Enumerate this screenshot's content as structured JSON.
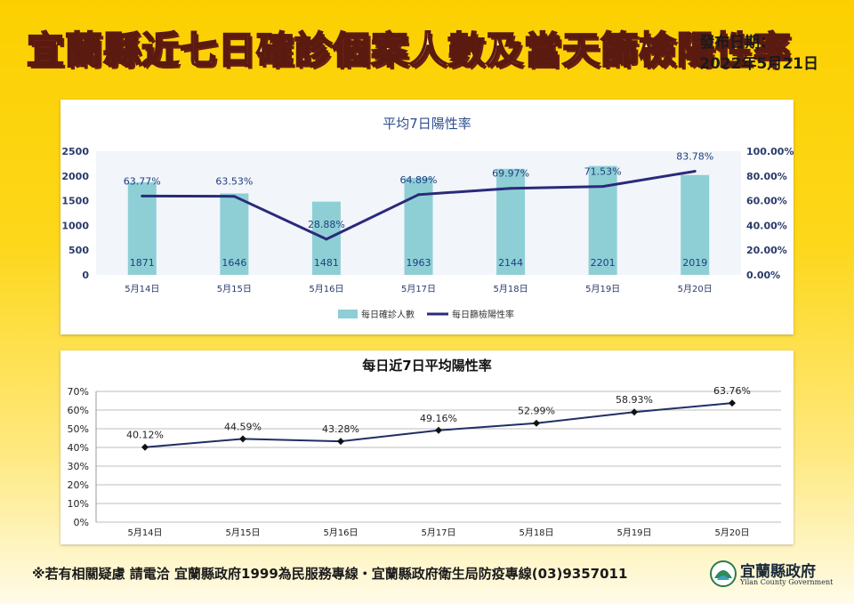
{
  "header": {
    "title": "宜蘭縣近七日確診個案人數及當天篩檢陽性率",
    "pub_label": "發布日期：",
    "pub_date": "2022年5月21日"
  },
  "footer": {
    "note": "※若有相關疑慮 請電洽  宜蘭縣政府1999為民服務專線・宜蘭縣政府衛生局防疫專線(03)9357011"
  },
  "logo": {
    "name": "宜蘭縣政府",
    "english": "Yilan County Government"
  },
  "colors": {
    "bar": "#8ecfd6",
    "line": "#2a2a7a",
    "label": "#1f3f7f"
  },
  "chart_data": [
    {
      "type": "bar+line",
      "title": "平均7日陽性率",
      "categories": [
        "5月14日",
        "5月15日",
        "5月16日",
        "5月17日",
        "5月18日",
        "5月19日",
        "5月20日"
      ],
      "series": [
        {
          "name": "每日確診人數",
          "type": "bar",
          "axis": "left",
          "values": [
            1871,
            1646,
            1481,
            1963,
            2144,
            2201,
            2019
          ],
          "labels": [
            "1871",
            "1646",
            "1481",
            "1963",
            "2144",
            "2201",
            "2019"
          ]
        },
        {
          "name": "每日篩檢陽性率",
          "type": "line",
          "axis": "right",
          "values": [
            63.77,
            63.53,
            28.88,
            64.89,
            69.97,
            71.53,
            83.78
          ],
          "labels": [
            "63.77%",
            "63.53%",
            "28.88%",
            "64.89%",
            "69.97%",
            "71.53%",
            "83.78%"
          ]
        }
      ],
      "y_left": {
        "range": [
          0,
          2500
        ],
        "ticks": [
          "0",
          "500",
          "1000",
          "1500",
          "2000",
          "2500"
        ]
      },
      "y_right": {
        "range": [
          0,
          100
        ],
        "ticks": [
          "0.00%",
          "20.00%",
          "40.00%",
          "60.00%",
          "80.00%",
          "100.00%"
        ]
      },
      "legend_position": "bottom"
    },
    {
      "type": "line",
      "title": "每日近7日平均陽性率",
      "categories": [
        "5月14日",
        "5月15日",
        "5月16日",
        "5月17日",
        "5月18日",
        "5月19日",
        "5月20日"
      ],
      "series": [
        {
          "name": "",
          "values": [
            40.12,
            44.59,
            43.28,
            49.16,
            52.99,
            58.93,
            63.76
          ],
          "labels": [
            "40.12%",
            "44.59%",
            "43.28%",
            "49.16%",
            "52.99%",
            "58.93%",
            "63.76%"
          ]
        }
      ],
      "y": {
        "range": [
          0,
          70
        ],
        "ticks": [
          "0%",
          "10%",
          "20%",
          "30%",
          "40%",
          "50%",
          "60%",
          "70%"
        ]
      },
      "grid": true
    }
  ]
}
